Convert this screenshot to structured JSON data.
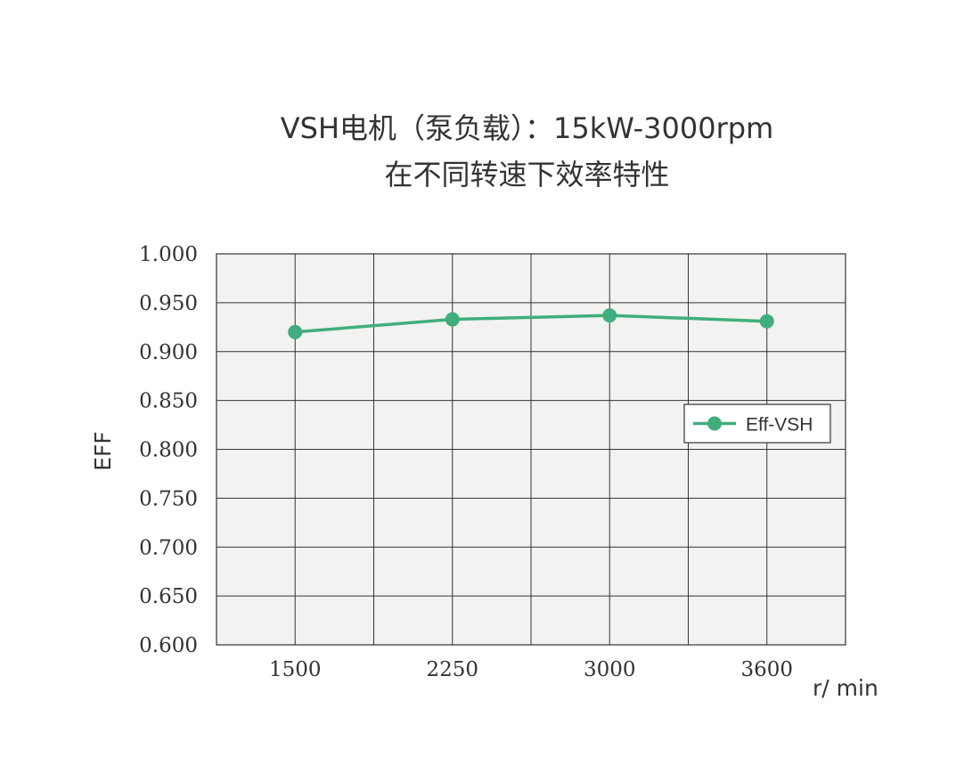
{
  "chart_data": {
    "type": "line",
    "title_line1": "VSH电机（泵负载）：15kW-3000rpm",
    "title_line2": "在不同转速下效率特性",
    "ylabel": "EFF",
    "xlabel": "r/ min",
    "categories": [
      "1500",
      "2250",
      "3000",
      "3600"
    ],
    "series": [
      {
        "name": "Eff-VSH",
        "values": [
          0.92,
          0.933,
          0.937,
          0.931
        ],
        "color": "#3fae7c"
      }
    ],
    "ylim": [
      0.6,
      1.0
    ],
    "yticks": [
      "1.000",
      "0.950",
      "0.900",
      "0.850",
      "0.800",
      "0.750",
      "0.700",
      "0.650",
      "0.600"
    ],
    "grid": true,
    "plot_background": "#f2f2f0",
    "legend": "right"
  }
}
